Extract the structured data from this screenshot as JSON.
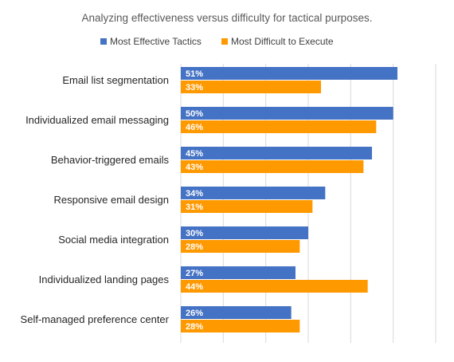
{
  "chart_data": {
    "type": "bar",
    "orientation": "horizontal",
    "title": "Analyzing effectiveness versus difficulty for tactical purposes.",
    "xlabel": "",
    "ylabel": "",
    "xlim": [
      0,
      60
    ],
    "grid": true,
    "legend_position": "top",
    "categories": [
      "Email list segmentation",
      "Individualized email messaging",
      "Behavior-triggered emails",
      "Responsive email design",
      "Social media integration",
      "Individualized landing pages",
      "Self-managed preference center"
    ],
    "series": [
      {
        "name": "Most Effective Tactics",
        "color": "#4472c4",
        "values": [
          51,
          50,
          45,
          34,
          30,
          27,
          26
        ],
        "labels": [
          "51%",
          "50%",
          "45%",
          "34%",
          "30%",
          "27%",
          "26%"
        ]
      },
      {
        "name": "Most Difficult to Execute",
        "color": "#ff9900",
        "values": [
          33,
          46,
          43,
          31,
          28,
          44,
          28
        ],
        "labels": [
          "33%",
          "46%",
          "43%",
          "31%",
          "28%",
          "44%",
          "28%"
        ]
      }
    ]
  }
}
